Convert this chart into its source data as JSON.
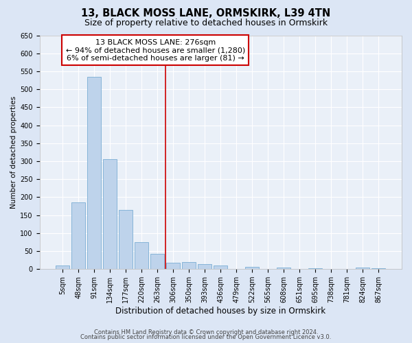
{
  "title": "13, BLACK MOSS LANE, ORMSKIRK, L39 4TN",
  "subtitle": "Size of property relative to detached houses in Ormskirk",
  "xlabel": "Distribution of detached houses by size in Ormskirk",
  "ylabel": "Number of detached properties",
  "bin_labels": [
    "5sqm",
    "48sqm",
    "91sqm",
    "134sqm",
    "177sqm",
    "220sqm",
    "263sqm",
    "306sqm",
    "350sqm",
    "393sqm",
    "436sqm",
    "479sqm",
    "522sqm",
    "565sqm",
    "608sqm",
    "651sqm",
    "695sqm",
    "738sqm",
    "781sqm",
    "824sqm",
    "867sqm"
  ],
  "bar_values": [
    10,
    185,
    535,
    305,
    165,
    75,
    42,
    18,
    20,
    14,
    10,
    0,
    6,
    0,
    5,
    0,
    2,
    0,
    0,
    5,
    3
  ],
  "bar_color": "#bed3eb",
  "bar_edgecolor": "#7aadd4",
  "vline_x": 6.5,
  "vline_color": "#cc0000",
  "ylim": [
    0,
    650
  ],
  "yticks": [
    0,
    50,
    100,
    150,
    200,
    250,
    300,
    350,
    400,
    450,
    500,
    550,
    600,
    650
  ],
  "annotation_title": "13 BLACK MOSS LANE: 276sqm",
  "annotation_line1": "← 94% of detached houses are smaller (1,280)",
  "annotation_line2": "6% of semi-detached houses are larger (81) →",
  "annotation_box_color": "#ffffff",
  "annotation_box_edgecolor": "#cc0000",
  "footer_line1": "Contains HM Land Registry data © Crown copyright and database right 2024.",
  "footer_line2": "Contains public sector information licensed under the Open Government Licence v3.0.",
  "bg_color": "#dce6f5",
  "plot_bg_color": "#eaf0f8",
  "title_fontsize": 10.5,
  "subtitle_fontsize": 9,
  "xlabel_fontsize": 8.5,
  "ylabel_fontsize": 7.5,
  "tick_fontsize": 7,
  "annotation_fontsize": 8,
  "footer_fontsize": 6
}
